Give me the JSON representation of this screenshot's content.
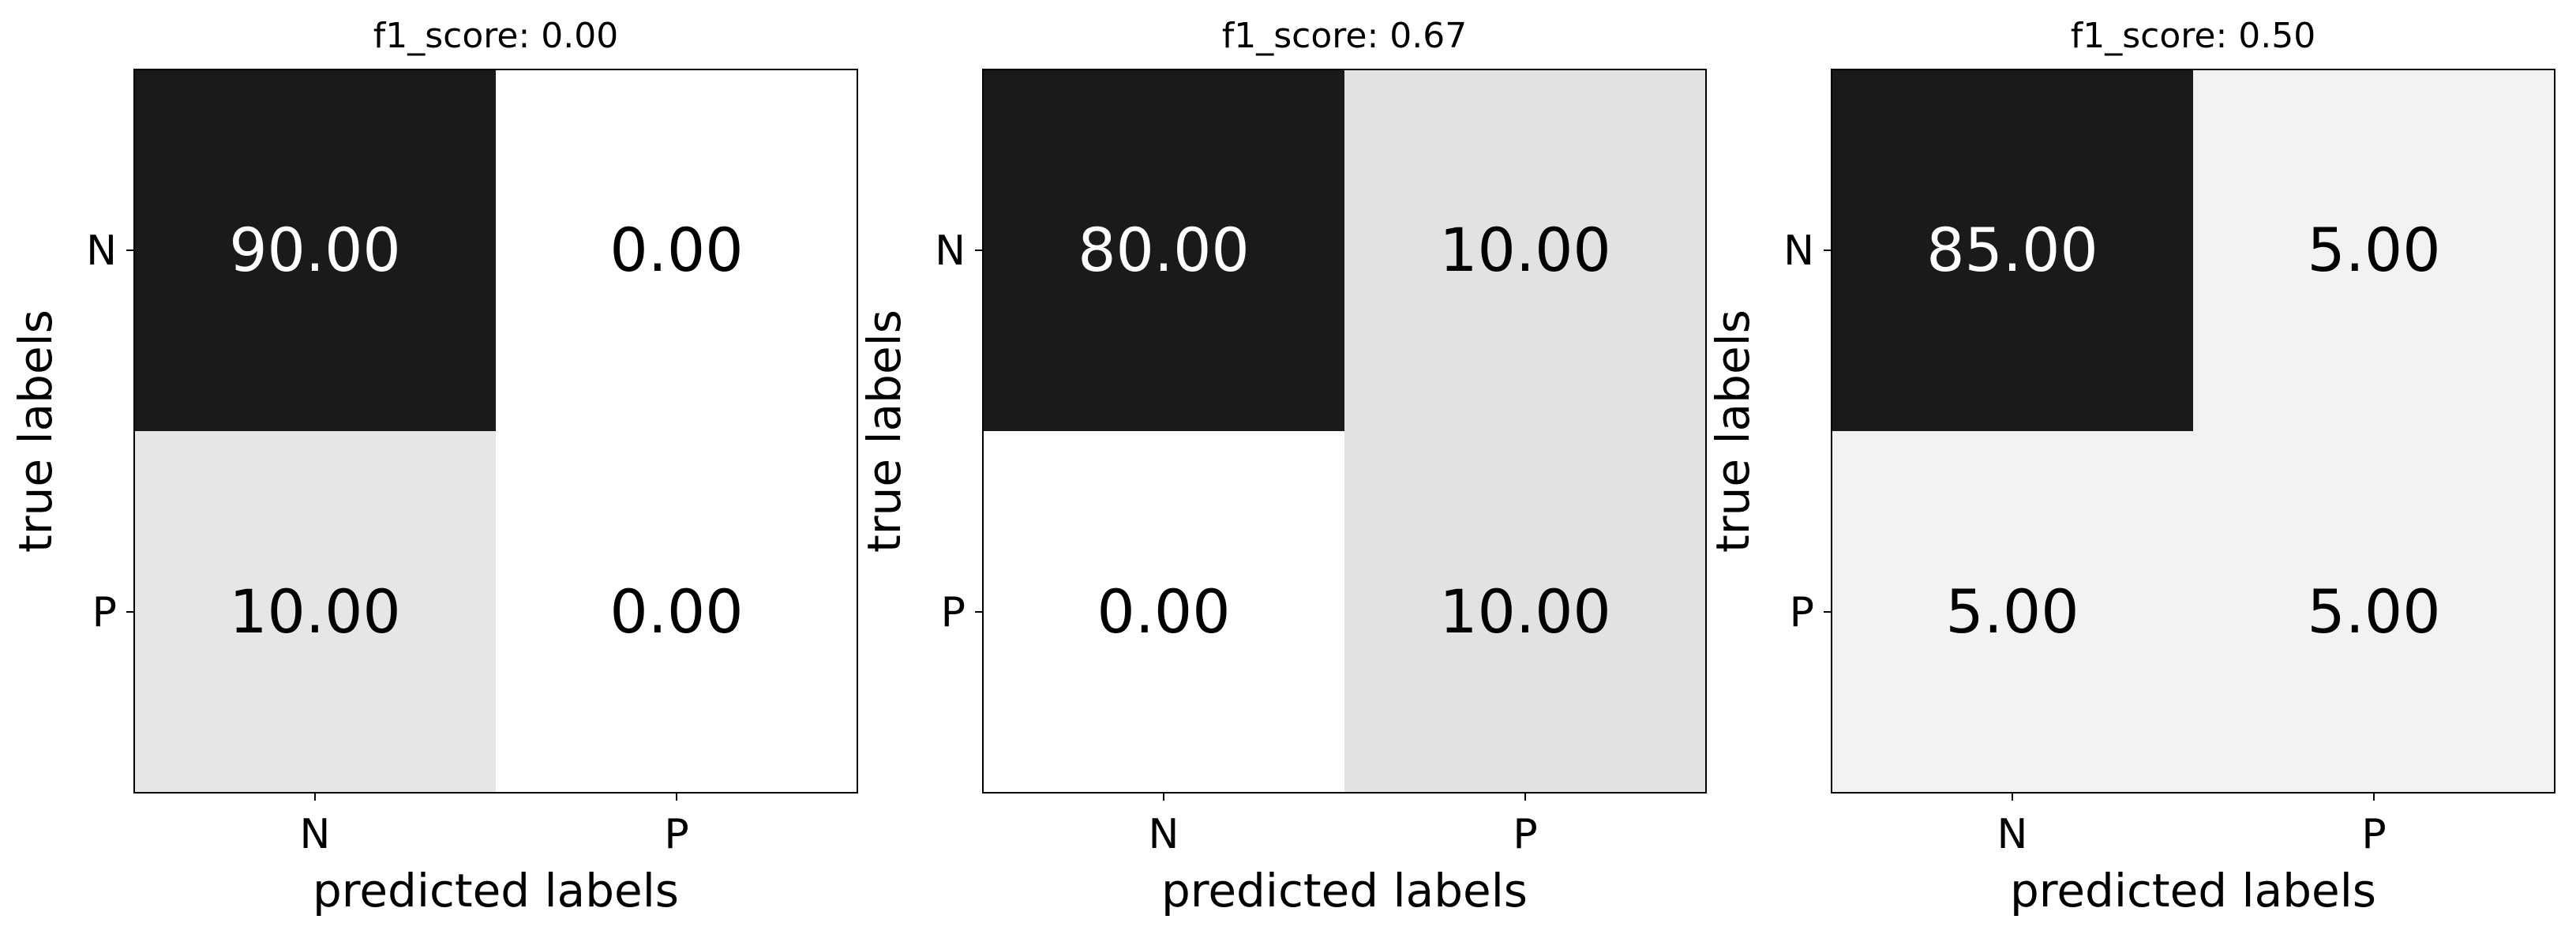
{
  "chart_data": [
    {
      "type": "heatmap",
      "title": "f1_score: 0.00",
      "xlabel": "predicted labels",
      "ylabel": "true labels",
      "x_ticks": [
        "N",
        "P"
      ],
      "y_ticks": [
        "N",
        "P"
      ],
      "values": [
        [
          90.0,
          0.0
        ],
        [
          10.0,
          0.0
        ]
      ],
      "cell_labels": [
        [
          "90.00",
          "0.00"
        ],
        [
          "10.00",
          "0.00"
        ]
      ]
    },
    {
      "type": "heatmap",
      "title": "f1_score: 0.67",
      "xlabel": "predicted labels",
      "ylabel": "true labels",
      "x_ticks": [
        "N",
        "P"
      ],
      "y_ticks": [
        "N",
        "P"
      ],
      "values": [
        [
          80.0,
          10.0
        ],
        [
          0.0,
          10.0
        ]
      ],
      "cell_labels": [
        [
          "80.00",
          "10.00"
        ],
        [
          "0.00",
          "10.00"
        ]
      ]
    },
    {
      "type": "heatmap",
      "title": "f1_score: 0.50",
      "xlabel": "predicted labels",
      "ylabel": "true labels",
      "x_ticks": [
        "N",
        "P"
      ],
      "y_ticks": [
        "N",
        "P"
      ],
      "values": [
        [
          85.0,
          5.0
        ],
        [
          5.0,
          5.0
        ]
      ],
      "cell_labels": [
        [
          "85.00",
          "5.00"
        ],
        [
          "5.00",
          "5.00"
        ]
      ]
    }
  ],
  "colormap": "Greys",
  "colors": {
    "dark_text": "#000000",
    "light_text": "#ffffff",
    "frame": "#000000"
  }
}
